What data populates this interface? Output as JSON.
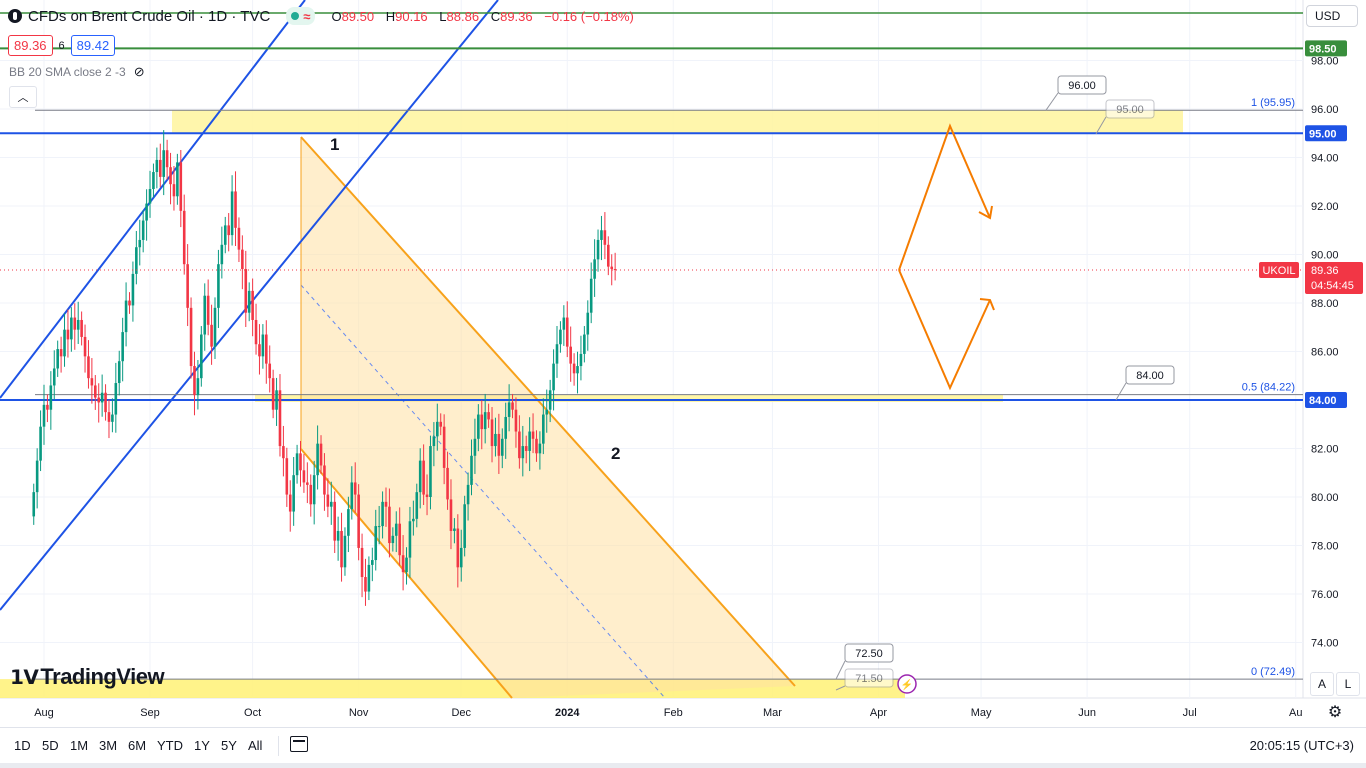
{
  "header": {
    "title": "CFDs on Brent Crude Oil · 1D · TVC",
    "ohlc": [
      {
        "k": "O",
        "v": "89.50"
      },
      {
        "k": "H",
        "v": "90.16"
      },
      {
        "k": "L",
        "v": "88.86"
      },
      {
        "k": "C",
        "v": "89.36"
      }
    ],
    "change": "−0.16 (−0.18%)",
    "sell_price": "89.36",
    "spread": "6",
    "buy_price": "89.42",
    "indicator": "BB 20 SMA close 2 -3"
  },
  "currency": "USD",
  "logo_text": "TradingView",
  "toolbar": {
    "ranges": [
      "1D",
      "5D",
      "1M",
      "3M",
      "6M",
      "YTD",
      "1Y",
      "5Y",
      "All"
    ],
    "clock": "20:05:15 (UTC+3)",
    "mode_a": "A",
    "mode_l": "L"
  },
  "chart_data": {
    "type": "candlestick",
    "symbol": "UKOIL",
    "timeframe": "1D",
    "last_price": 89.36,
    "countdown": "04:54:45",
    "ylim": [
      72.0,
      100.0
    ],
    "y_ticks": [
      74,
      76,
      78,
      80,
      82,
      84,
      86,
      88,
      90,
      92,
      94,
      96,
      98
    ],
    "x_ticks": [
      {
        "label": "Aug",
        "day": 0
      },
      {
        "label": "Sep",
        "day": 31
      },
      {
        "label": "Oct",
        "day": 61
      },
      {
        "label": "Nov",
        "day": 92
      },
      {
        "label": "Dec",
        "day": 122
      },
      {
        "label": "2024",
        "day": 153
      },
      {
        "label": "Feb",
        "day": 184
      },
      {
        "label": "Mar",
        "day": 213
      },
      {
        "label": "Apr",
        "day": 244
      },
      {
        "label": "May",
        "day": 274
      },
      {
        "label": "Jun",
        "day": 305
      },
      {
        "label": "Jul",
        "day": 335
      },
      {
        "label": "Au",
        "day": 366
      }
    ],
    "horizontal_levels": [
      {
        "price": 98.5,
        "label": "98.50",
        "color": "#388e3c"
      },
      {
        "price": 95.0,
        "label": "95.00",
        "color": "#1e53e5"
      },
      {
        "price": 84.0,
        "label": "84.00",
        "color": "#1e53e5"
      }
    ],
    "fib_levels": [
      {
        "price": 95.95,
        "label": "1 (95.95)"
      },
      {
        "price": 84.22,
        "label": "0.5 (84.22)"
      },
      {
        "price": 72.49,
        "label": "0 (72.49)"
      }
    ],
    "price_callouts": [
      "96.00",
      "95.00",
      "84.00",
      "72.50",
      "71.50"
    ],
    "wave_labels": [
      "1",
      "2"
    ],
    "closes": [
      80.2,
      81.5,
      82.9,
      83.8,
      83.6,
      84.6,
      85.3,
      86.1,
      85.8,
      86.9,
      86.5,
      87.4,
      86.9,
      87.3,
      86.6,
      85.8,
      84.9,
      84.6,
      84.1,
      83.9,
      84.3,
      83.5,
      83.1,
      83.4,
      84.7,
      85.6,
      86.8,
      88.1,
      87.9,
      89.2,
      90.3,
      90.6,
      91.4,
      92.1,
      92.7,
      93.4,
      93.9,
      93.2,
      94.3,
      93.6,
      92.9,
      92.4,
      93.8,
      91.8,
      89.6,
      87.8,
      85.4,
      84.2,
      84.9,
      86.7,
      88.3,
      87.1,
      86.2,
      87.8,
      89.6,
      90.4,
      91.2,
      90.8,
      92.6,
      91.1,
      90.2,
      89.4,
      87.6,
      88.5,
      87.3,
      86.3,
      85.8,
      86.7,
      85.5,
      84.9,
      83.6,
      84.4,
      82.1,
      81.6,
      80.1,
      79.4,
      80.9,
      81.8,
      81.1,
      80.6,
      80.5,
      79.7,
      80.9,
      82.2,
      81.3,
      80.1,
      79.6,
      79.8,
      78.2,
      78.6,
      77.1,
      78.4,
      79.5,
      80.6,
      80.1,
      77.9,
      76.7,
      76.1,
      77.2,
      77.4,
      78.8,
      78.8,
      79.8,
      79.6,
      78.1,
      78.4,
      78.9,
      77.6,
      76.9,
      77.5,
      79.0,
      79.1,
      80.2,
      81.5,
      80.1,
      80.0,
      82.1,
      82.5,
      83.1,
      82.9,
      81.2,
      79.9,
      78.6,
      78.7,
      77.1,
      77.9,
      79.7,
      80.5,
      81.7,
      82.4,
      83.4,
      82.8,
      83.5,
      83.2,
      82.1,
      82.6,
      81.7,
      82.4,
      83.3,
      83.9,
      83.6,
      82.7,
      81.6,
      82.1,
      81.9,
      82.7,
      82.4,
      81.8,
      82.2,
      83.4,
      83.6,
      84.4,
      85.5,
      86.3,
      86.9,
      87.4,
      86.2,
      85.5,
      85.1,
      85.4,
      85.9,
      86.7,
      87.6,
      89.0,
      89.8,
      90.6,
      91.0,
      90.4,
      89.5,
      89.4,
      89.36
    ],
    "projection": {
      "from_day": 250,
      "up_target": 95.3,
      "down_target": 84.5
    }
  }
}
